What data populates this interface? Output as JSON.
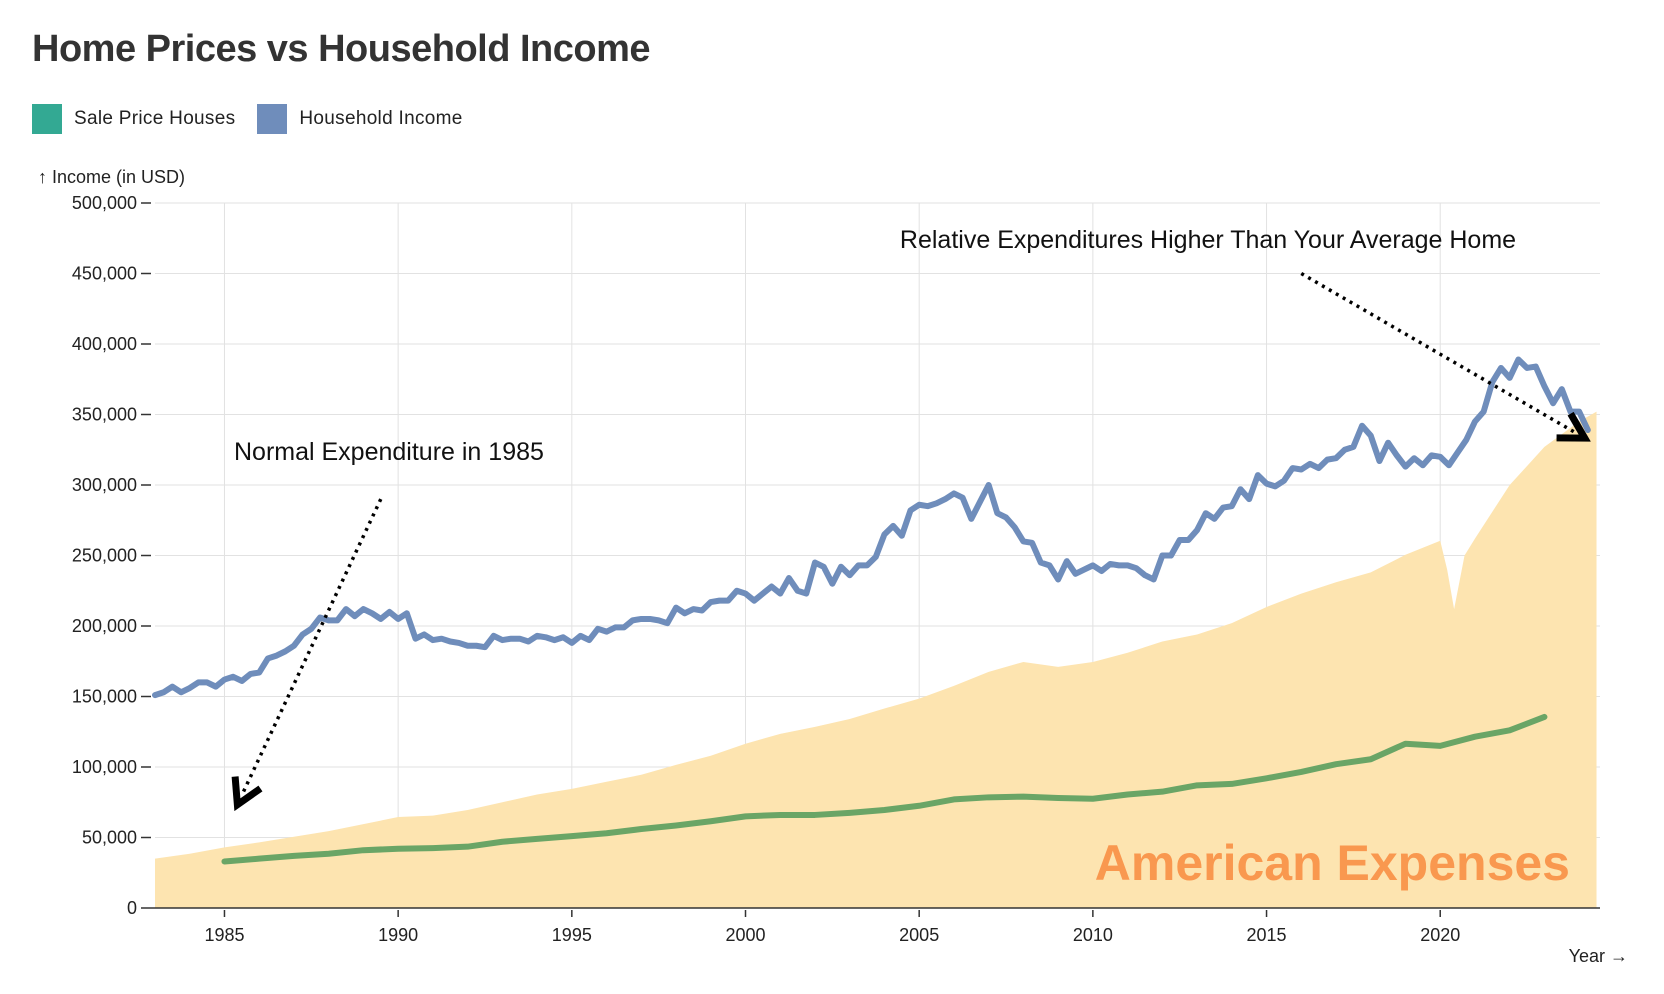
{
  "title": "Home Prices vs Household Income",
  "legend": [
    {
      "label": "Sale Price Houses",
      "color": "#33a993"
    },
    {
      "label": "Household Income",
      "color": "#6f8dbb"
    }
  ],
  "colors": {
    "area": "#fde4b0",
    "house_line": "#6f8dbb",
    "income_line": "#6aa566",
    "watermark": "#f9984f",
    "grid": "#e2e2e2"
  },
  "chart_data": {
    "type": "line",
    "ylabel": "↑ Income (in USD)",
    "xlabel": "Year →",
    "xlim": [
      1983,
      2024.6
    ],
    "ylim": [
      0,
      500000
    ],
    "yticks": [
      0,
      50000,
      100000,
      150000,
      200000,
      250000,
      300000,
      350000,
      400000,
      450000,
      500000
    ],
    "ytick_labels": [
      "0",
      "50,000",
      "100,000",
      "150,000",
      "200,000",
      "250,000",
      "300,000",
      "350,000",
      "400,000",
      "450,000",
      "500,000"
    ],
    "xticks": [
      1985,
      1990,
      1995,
      2000,
      2005,
      2010,
      2015,
      2020
    ],
    "xtick_labels": [
      "1985",
      "1990",
      "1995",
      "2000",
      "2005",
      "2010",
      "2015",
      "2020"
    ],
    "grid": true,
    "series": [
      {
        "name": "Household Income",
        "color": "#6f8dbb",
        "x": [
          1983.0,
          1983.25,
          1983.5,
          1983.75,
          1984.0,
          1984.25,
          1984.5,
          1984.75,
          1985.0,
          1985.25,
          1985.5,
          1985.75,
          1986.0,
          1986.25,
          1986.5,
          1986.75,
          1987.0,
          1987.25,
          1987.5,
          1987.75,
          1988.0,
          1988.25,
          1988.5,
          1988.75,
          1989.0,
          1989.25,
          1989.5,
          1989.75,
          1990.0,
          1990.25,
          1990.5,
          1990.75,
          1991.0,
          1991.25,
          1991.5,
          1991.75,
          1992.0,
          1992.25,
          1992.5,
          1992.75,
          1993.0,
          1993.25,
          1993.5,
          1993.75,
          1994.0,
          1994.25,
          1994.5,
          1994.75,
          1995.0,
          1995.25,
          1995.5,
          1995.75,
          1996.0,
          1996.25,
          1996.5,
          1996.75,
          1997.0,
          1997.25,
          1997.5,
          1997.75,
          1998.0,
          1998.25,
          1998.5,
          1998.75,
          1999.0,
          1999.25,
          1999.5,
          1999.75,
          2000.0,
          2000.25,
          2000.5,
          2000.75,
          2001.0,
          2001.25,
          2001.5,
          2001.75,
          2002.0,
          2002.25,
          2002.5,
          2002.75,
          2003.0,
          2003.25,
          2003.5,
          2003.75,
          2004.0,
          2004.25,
          2004.5,
          2004.75,
          2005.0,
          2005.25,
          2005.5,
          2005.75,
          2006.0,
          2006.25,
          2006.5,
          2006.75,
          2007.0,
          2007.25,
          2007.5,
          2007.75,
          2008.0,
          2008.25,
          2008.5,
          2008.75,
          2009.0,
          2009.25,
          2009.5,
          2009.75,
          2010.0,
          2010.25,
          2010.5,
          2010.75,
          2011.0,
          2011.25,
          2011.5,
          2011.75,
          2012.0,
          2012.25,
          2012.5,
          2012.75,
          2013.0,
          2013.25,
          2013.5,
          2013.75,
          2014.0,
          2014.25,
          2014.5,
          2014.75,
          2015.0,
          2015.25,
          2015.5,
          2015.75,
          2016.0,
          2016.25,
          2016.5,
          2016.75,
          2017.0,
          2017.25,
          2017.5,
          2017.75,
          2018.0,
          2018.25,
          2018.5,
          2018.75,
          2019.0,
          2019.25,
          2019.5,
          2019.75,
          2020.0,
          2020.25,
          2020.5,
          2020.75,
          2021.0,
          2021.25,
          2021.5,
          2021.75,
          2022.0,
          2022.25,
          2022.5,
          2022.75,
          2023.0,
          2023.25,
          2023.5,
          2023.75,
          2024.0,
          2024.25
        ],
        "values": [
          151000,
          153000,
          157000,
          153000,
          156000,
          160000,
          160000,
          157000,
          162000,
          164000,
          161000,
          166000,
          167000,
          177000,
          179000,
          182000,
          186000,
          194000,
          198000,
          206000,
          204000,
          204000,
          212000,
          207000,
          212000,
          209000,
          205000,
          210000,
          205000,
          209000,
          191000,
          194000,
          190000,
          191000,
          189000,
          188000,
          186000,
          186000,
          185000,
          193000,
          190000,
          191000,
          191000,
          189000,
          193000,
          192000,
          190000,
          192000,
          188000,
          193000,
          190000,
          198000,
          196000,
          199000,
          199000,
          204000,
          205000,
          205000,
          204000,
          202000,
          213000,
          209000,
          212000,
          211000,
          217000,
          218000,
          218000,
          225000,
          223000,
          218000,
          223000,
          228000,
          223000,
          234000,
          225000,
          223000,
          245000,
          242000,
          230000,
          242000,
          236000,
          243000,
          243000,
          249000,
          265000,
          271000,
          264000,
          282000,
          286000,
          285000,
          287000,
          290000,
          294000,
          291000,
          276000,
          288000,
          300000,
          280000,
          277000,
          270000,
          260000,
          259000,
          245000,
          243000,
          233000,
          246000,
          237000,
          240000,
          243000,
          239000,
          244000,
          243000,
          243000,
          241000,
          236000,
          233000,
          250000,
          250000,
          261000,
          261000,
          268000,
          280000,
          276000,
          284000,
          285000,
          297000,
          290000,
          307000,
          301000,
          299000,
          303000,
          312000,
          311000,
          315000,
          312000,
          318000,
          319000,
          325000,
          327000,
          342000,
          335000,
          317000,
          330000,
          321000,
          313000,
          319000,
          314000,
          321000,
          320000,
          314000,
          323000,
          332000,
          345000,
          352000,
          373000,
          383000,
          376000,
          389000,
          383000,
          384000,
          370000,
          358000,
          368000,
          352000,
          352000,
          339000
        ]
      },
      {
        "name": "Sale Price Houses",
        "color": "#6aa566",
        "x": [
          1985,
          1986,
          1987,
          1988,
          1989,
          1990,
          1991,
          1992,
          1993,
          1994,
          1995,
          1996,
          1997,
          1998,
          1999,
          2000,
          2001,
          2002,
          2003,
          2004,
          2005,
          2006,
          2007,
          2008,
          2009,
          2010,
          2011,
          2012,
          2013,
          2014,
          2015,
          2016,
          2017,
          2018,
          2019,
          2020,
          2021,
          2022,
          2023
        ],
        "values": [
          33000,
          35000,
          37000,
          38500,
          41000,
          42000,
          42500,
          43500,
          47000,
          49000,
          51000,
          53000,
          56000,
          58500,
          61500,
          65000,
          66000,
          66000,
          67500,
          69500,
          72500,
          77000,
          78500,
          79000,
          78000,
          77500,
          80500,
          82500,
          87000,
          88000,
          92000,
          96500,
          102000,
          105500,
          116500,
          115000,
          121500,
          126000,
          135500
        ]
      },
      {
        "name": "",
        "type": "area",
        "color": "#fde4b0",
        "x": [
          1983,
          1984,
          1985,
          1986,
          1987,
          1988,
          1989,
          1990,
          1991,
          1992,
          1993,
          1994,
          1995,
          1996,
          1997,
          1998,
          1999,
          2000,
          2001,
          2002,
          2003,
          2004,
          2005,
          2006,
          2007,
          2008,
          2009,
          2010,
          2011,
          2012,
          2013,
          2014,
          2015,
          2016,
          2017,
          2018,
          2019,
          2020,
          2020.2,
          2020.4,
          2020.7,
          2021,
          2022,
          2023,
          2024,
          2024.5
        ],
        "values": [
          35000,
          38500,
          43000,
          46500,
          50500,
          54500,
          59500,
          64500,
          65500,
          69500,
          75000,
          80500,
          84500,
          89500,
          94500,
          101500,
          108000,
          116500,
          123500,
          128500,
          134000,
          141500,
          148500,
          157500,
          167500,
          174500,
          171000,
          174500,
          181000,
          189000,
          194000,
          202000,
          213500,
          223000,
          231000,
          238000,
          250500,
          260500,
          240000,
          212000,
          250000,
          262000,
          300000,
          327000,
          345000,
          352000
        ]
      }
    ],
    "annotations": [
      {
        "text": "Normal Expenditure in 1985",
        "arrow_from": [
          1989.5,
          290000
        ],
        "arrow_to": [
          1985.5,
          80000
        ]
      },
      {
        "text": "Relative Expenditures Higher Than Your Average Home",
        "arrow_from": [
          2016.0,
          450000
        ],
        "arrow_to": [
          2023.9,
          337000
        ]
      }
    ],
    "watermark": "American Expenses"
  }
}
